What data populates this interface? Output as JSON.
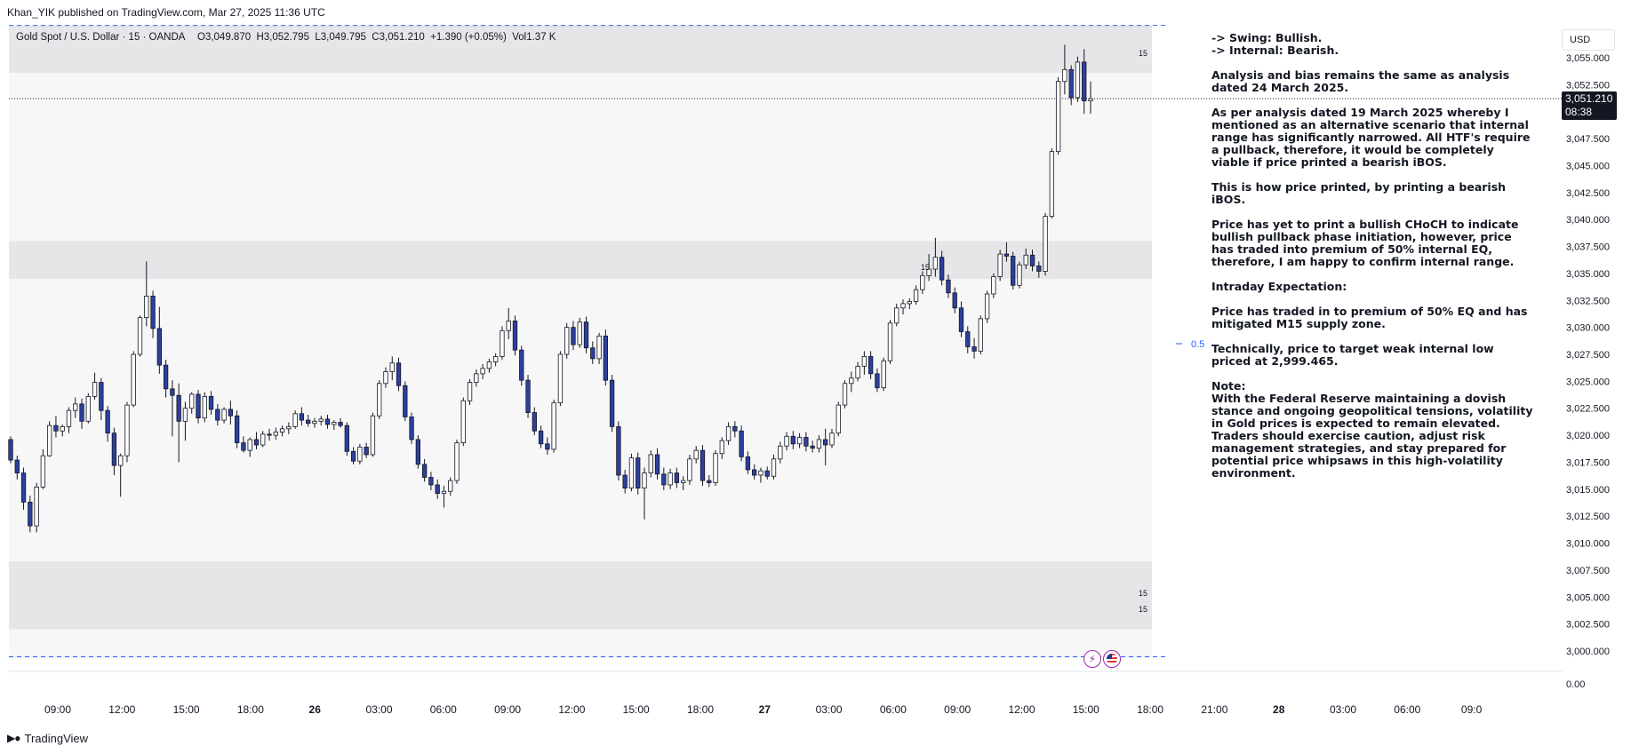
{
  "header": {
    "published_line": "Khan_YIK published on TradingView.com, Mar 27, 2025 11:36 UTC"
  },
  "legend": {
    "symbol": "Gold Spot / U.S. Dollar · 15 · OANDA",
    "ohlc": "O3,049.870  H3,052.795  L3,049.795  C3,051.210  +1.390 (+0.05%)  Vol1.37 K"
  },
  "price_scale": {
    "currency": "USD",
    "current_price": "3,051.210",
    "countdown": "08:38"
  },
  "zone_labels": {
    "top": "15",
    "middle": "15",
    "bottom_1": "15",
    "bottom_2": "15",
    "eq_marker": "0.5"
  },
  "annotation": [
    "-> Swing: Bullish.\n-> Internal: Bearish.",
    "Analysis and bias remains the same as analysis dated 24 March 2025.",
    "As per analysis dated 19 March 2025 whereby I mentioned as an alternative scenario that internal range has significantly narrowed. All HTF's require a pullback, therefore, it would be completely viable if price printed a bearish iBOS.",
    "This is how price printed, by printing a bearish iBOS.",
    "Price has yet to print a bullish CHoCH to indicate bullish pullback phase initiation, however, price has traded into premium of 50% internal EQ, therefore, I am happy to confirm internal range.",
    "Intraday Expectation:",
    "Price has traded in to premium of 50% EQ and has mitigated M15 supply zone.",
    "Technically, price to target weak internal low priced at 2,999.465.",
    "Note:\nWith the Federal Reserve maintaining a dovish stance and ongoing geopolitical tensions, volatility in Gold prices is expected to remain elevated. Traders should exercise caution, adjust risk management strategies, and stay prepared for potential price whipsaws in this high-volatility environment."
  ],
  "footer": {
    "brand": "TradingView"
  },
  "chart_data": {
    "type": "candlestick",
    "y_ticks": [
      "3,055.000",
      "3,052.500",
      "3,050.000",
      "3,047.500",
      "3,045.000",
      "3,042.500",
      "3,040.000",
      "3,037.500",
      "3,035.000",
      "3,032.500",
      "3,030.000",
      "3,027.500",
      "3,025.000",
      "3,022.500",
      "3,020.000",
      "3,017.500",
      "3,015.000",
      "3,012.500",
      "3,010.000",
      "3,007.500",
      "3,005.000",
      "3,002.500",
      "3,000.000"
    ],
    "volume_tick": "0.00",
    "x_ticks": [
      "09:00",
      "12:00",
      "15:00",
      "18:00",
      "26",
      "03:00",
      "06:00",
      "09:00",
      "12:00",
      "15:00",
      "18:00",
      "27",
      "03:00",
      "06:00",
      "09:00",
      "12:00",
      "15:00",
      "18:00",
      "21:00",
      "28",
      "03:00",
      "06:00",
      "09:0"
    ],
    "bold_x_ticks": [
      "26",
      "27",
      "28"
    ],
    "zones": [
      {
        "role": "supply",
        "from": 3053.6,
        "to": 3058.0
      },
      {
        "role": "supply",
        "from": 3034.5,
        "to": 3038.0
      },
      {
        "role": "demand",
        "from": 3002.0,
        "to": 3008.3
      }
    ],
    "levels": [
      {
        "price": 3058.0,
        "style": "dashed"
      },
      {
        "price": 3051.21,
        "style": "dotted"
      },
      {
        "price": 2999.465,
        "style": "dashed"
      }
    ],
    "eq_level": 3029.5,
    "candles": [
      [
        3019.6,
        3019.9,
        3017.4,
        3017.7
      ],
      [
        3017.7,
        3018.1,
        3015.9,
        3016.5
      ],
      [
        3016.5,
        3017.0,
        3013.1,
        3013.8
      ],
      [
        3013.8,
        3014.4,
        3011.0,
        3011.6
      ],
      [
        3011.6,
        3015.6,
        3011.0,
        3015.2
      ],
      [
        3015.2,
        3018.7,
        3015.0,
        3018.1
      ],
      [
        3018.1,
        3021.3,
        3018.0,
        3020.9
      ],
      [
        3020.9,
        3021.8,
        3019.8,
        3020.4
      ],
      [
        3020.4,
        3021.0,
        3019.9,
        3020.8
      ],
      [
        3020.8,
        3022.6,
        3020.2,
        3022.3
      ],
      [
        3022.3,
        3023.5,
        3021.6,
        3022.9
      ],
      [
        3022.9,
        3023.4,
        3020.6,
        3021.3
      ],
      [
        3021.3,
        3023.9,
        3021.1,
        3023.6
      ],
      [
        3023.6,
        3025.8,
        3023.3,
        3024.9
      ],
      [
        3024.9,
        3025.3,
        3021.4,
        3022.3
      ],
      [
        3022.3,
        3022.7,
        3019.4,
        3020.2
      ],
      [
        3020.2,
        3020.7,
        3016.3,
        3017.2
      ],
      [
        3017.2,
        3018.3,
        3014.3,
        3018.1
      ],
      [
        3018.1,
        3023.1,
        3017.5,
        3022.8
      ],
      [
        3022.8,
        3027.8,
        3022.6,
        3027.5
      ],
      [
        3027.5,
        3031.1,
        3027.3,
        3030.9
      ],
      [
        3030.9,
        3036.1,
        3030.1,
        3032.9
      ],
      [
        3032.9,
        3033.4,
        3029.0,
        3029.9
      ],
      [
        3029.9,
        3031.9,
        3025.7,
        3026.5
      ],
      [
        3026.5,
        3027.0,
        3023.5,
        3024.3
      ],
      [
        3024.3,
        3025.1,
        3019.9,
        3023.7
      ],
      [
        3023.7,
        3024.8,
        3017.5,
        3021.3
      ],
      [
        3021.3,
        3023.1,
        3019.5,
        3022.5
      ],
      [
        3022.5,
        3024.0,
        3022.0,
        3023.8
      ],
      [
        3023.8,
        3024.2,
        3021.1,
        3021.6
      ],
      [
        3021.6,
        3024.0,
        3021.2,
        3023.6
      ],
      [
        3023.6,
        3024.1,
        3021.9,
        3022.4
      ],
      [
        3022.4,
        3022.9,
        3020.9,
        3021.4
      ],
      [
        3021.4,
        3022.6,
        3021.1,
        3022.4
      ],
      [
        3022.4,
        3023.2,
        3021.0,
        3021.8
      ],
      [
        3021.8,
        3022.3,
        3018.8,
        3019.3
      ],
      [
        3019.3,
        3019.9,
        3018.4,
        3018.6
      ],
      [
        3018.6,
        3019.8,
        3018.0,
        3019.6
      ],
      [
        3019.6,
        3020.3,
        3018.7,
        3019.1
      ],
      [
        3019.1,
        3020.4,
        3018.9,
        3020.1
      ],
      [
        3020.1,
        3020.6,
        3019.5,
        3020.0
      ],
      [
        3020.0,
        3020.7,
        3019.6,
        3020.3
      ],
      [
        3020.3,
        3020.9,
        3019.9,
        3020.6
      ],
      [
        3020.6,
        3021.2,
        3020.1,
        3020.8
      ],
      [
        3020.8,
        3022.3,
        3020.6,
        3022.0
      ],
      [
        3022.0,
        3022.6,
        3020.9,
        3021.4
      ],
      [
        3021.4,
        3021.9,
        3020.8,
        3021.1
      ],
      [
        3021.1,
        3021.6,
        3020.7,
        3021.3
      ],
      [
        3021.3,
        3021.8,
        3020.9,
        3021.5
      ],
      [
        3021.5,
        3021.9,
        3020.6,
        3021.0
      ],
      [
        3021.0,
        3021.4,
        3020.5,
        3021.2
      ],
      [
        3021.2,
        3021.6,
        3020.7,
        3020.9
      ],
      [
        3020.9,
        3021.2,
        3018.1,
        3018.5
      ],
      [
        3018.5,
        3018.9,
        3017.3,
        3017.6
      ],
      [
        3017.6,
        3019.2,
        3017.3,
        3018.9
      ],
      [
        3018.9,
        3019.3,
        3017.9,
        3018.2
      ],
      [
        3018.2,
        3022.1,
        3018.0,
        3021.8
      ],
      [
        3021.8,
        3025.1,
        3021.5,
        3024.8
      ],
      [
        3024.8,
        3026.3,
        3024.4,
        3025.9
      ],
      [
        3025.9,
        3027.3,
        3025.1,
        3026.7
      ],
      [
        3026.7,
        3027.2,
        3024.1,
        3024.6
      ],
      [
        3024.6,
        3025.0,
        3021.3,
        3021.7
      ],
      [
        3021.7,
        3022.1,
        3019.2,
        3019.6
      ],
      [
        3019.6,
        3020.0,
        3016.9,
        3017.3
      ],
      [
        3017.3,
        3017.8,
        3015.7,
        3016.1
      ],
      [
        3016.1,
        3016.6,
        3014.9,
        3015.4
      ],
      [
        3015.4,
        3015.9,
        3014.1,
        3014.6
      ],
      [
        3014.6,
        3015.3,
        3013.3,
        3014.8
      ],
      [
        3014.8,
        3016.1,
        3014.4,
        3015.8
      ],
      [
        3015.8,
        3019.6,
        3015.5,
        3019.3
      ],
      [
        3019.3,
        3023.5,
        3019.0,
        3023.2
      ],
      [
        3023.2,
        3025.2,
        3022.8,
        3024.9
      ],
      [
        3024.9,
        3026.1,
        3024.5,
        3025.7
      ],
      [
        3025.7,
        3026.6,
        3025.2,
        3026.2
      ],
      [
        3026.2,
        3027.1,
        3025.8,
        3026.8
      ],
      [
        3026.8,
        3027.6,
        3026.4,
        3027.3
      ],
      [
        3027.3,
        3030.1,
        3027.0,
        3029.7
      ],
      [
        3029.7,
        3031.8,
        3028.9,
        3030.6
      ],
      [
        3030.6,
        3031.1,
        3027.4,
        3027.9
      ],
      [
        3027.9,
        3028.3,
        3024.6,
        3025.1
      ],
      [
        3025.1,
        3025.6,
        3021.6,
        3022.1
      ],
      [
        3022.1,
        3022.6,
        3020.0,
        3020.4
      ],
      [
        3020.4,
        3020.9,
        3018.8,
        3019.2
      ],
      [
        3019.2,
        3019.8,
        3018.2,
        3018.7
      ],
      [
        3018.7,
        3023.3,
        3018.4,
        3023.0
      ],
      [
        3023.0,
        3027.8,
        3022.7,
        3027.5
      ],
      [
        3027.5,
        3030.4,
        3027.1,
        3030.0
      ],
      [
        3030.0,
        3030.6,
        3027.9,
        3028.4
      ],
      [
        3028.4,
        3030.9,
        3028.1,
        3030.5
      ],
      [
        3030.5,
        3031.0,
        3027.6,
        3028.1
      ],
      [
        3028.1,
        3028.7,
        3026.6,
        3027.1
      ],
      [
        3027.1,
        3029.5,
        3026.6,
        3029.2
      ],
      [
        3029.2,
        3029.8,
        3024.6,
        3025.1
      ],
      [
        3025.1,
        3025.6,
        3020.3,
        3020.8
      ],
      [
        3020.8,
        3021.3,
        3015.8,
        3016.3
      ],
      [
        3016.3,
        3016.8,
        3014.6,
        3015.1
      ],
      [
        3015.1,
        3018.3,
        3014.8,
        3017.9
      ],
      [
        3017.9,
        3018.4,
        3014.5,
        3015.1
      ],
      [
        3015.1,
        3017.0,
        3012.2,
        3016.5
      ],
      [
        3016.5,
        3018.6,
        3016.1,
        3018.2
      ],
      [
        3018.2,
        3018.8,
        3015.9,
        3016.4
      ],
      [
        3016.4,
        3017.0,
        3014.9,
        3015.4
      ],
      [
        3015.4,
        3016.9,
        3015.0,
        3016.5
      ],
      [
        3016.5,
        3017.0,
        3015.1,
        3015.6
      ],
      [
        3015.6,
        3016.2,
        3014.9,
        3015.8
      ],
      [
        3015.8,
        3018.2,
        3015.4,
        3017.8
      ],
      [
        3017.8,
        3019.0,
        3017.4,
        3018.6
      ],
      [
        3018.6,
        3019.1,
        3015.3,
        3015.8
      ],
      [
        3015.8,
        3016.3,
        3015.2,
        3015.6
      ],
      [
        3015.6,
        3018.6,
        3015.3,
        3018.3
      ],
      [
        3018.3,
        3019.8,
        3017.8,
        3019.5
      ],
      [
        3019.5,
        3021.2,
        3019.1,
        3020.8
      ],
      [
        3020.8,
        3021.3,
        3019.8,
        3020.4
      ],
      [
        3020.4,
        3020.9,
        3017.6,
        3018.0
      ],
      [
        3018.0,
        3018.5,
        3016.4,
        3016.8
      ],
      [
        3016.8,
        3017.3,
        3015.9,
        3016.3
      ],
      [
        3016.3,
        3017.0,
        3015.6,
        3016.7
      ],
      [
        3016.7,
        3017.1,
        3015.9,
        3016.2
      ],
      [
        3016.2,
        3018.2,
        3015.9,
        3017.8
      ],
      [
        3017.8,
        3019.4,
        3017.4,
        3019.0
      ],
      [
        3019.0,
        3020.3,
        3018.6,
        3019.9
      ],
      [
        3019.9,
        3020.4,
        3018.7,
        3019.2
      ],
      [
        3019.2,
        3020.2,
        3018.8,
        3019.8
      ],
      [
        3019.8,
        3020.3,
        3018.5,
        3019.0
      ],
      [
        3019.0,
        3019.5,
        3018.4,
        3018.8
      ],
      [
        3018.8,
        3020.0,
        3018.4,
        3019.6
      ],
      [
        3019.6,
        3020.6,
        3017.2,
        3019.1
      ],
      [
        3019.1,
        3020.6,
        3018.8,
        3020.2
      ],
      [
        3020.2,
        3023.1,
        3019.9,
        3022.8
      ],
      [
        3022.8,
        3025.1,
        3022.5,
        3024.8
      ],
      [
        3024.8,
        3025.9,
        3024.0,
        3025.3
      ],
      [
        3025.3,
        3026.8,
        3025.0,
        3026.4
      ],
      [
        3026.4,
        3027.8,
        3025.6,
        3027.3
      ],
      [
        3027.3,
        3027.8,
        3025.2,
        3025.7
      ],
      [
        3025.7,
        3026.2,
        3024.0,
        3024.4
      ],
      [
        3024.4,
        3027.2,
        3024.1,
        3026.9
      ],
      [
        3026.9,
        3030.7,
        3026.6,
        3030.4
      ],
      [
        3030.4,
        3032.2,
        3030.1,
        3031.8
      ],
      [
        3031.8,
        3032.6,
        3031.2,
        3032.2
      ],
      [
        3032.2,
        3032.7,
        3031.7,
        3032.4
      ],
      [
        3032.4,
        3033.9,
        3032.1,
        3033.5
      ],
      [
        3033.5,
        3035.2,
        3033.1,
        3034.8
      ],
      [
        3034.8,
        3036.8,
        3034.3,
        3035.4
      ],
      [
        3035.4,
        3038.3,
        3034.7,
        3036.5
      ],
      [
        3036.5,
        3037.1,
        3033.9,
        3034.4
      ],
      [
        3034.4,
        3034.9,
        3032.7,
        3033.2
      ],
      [
        3033.2,
        3033.7,
        3031.3,
        3031.8
      ],
      [
        3031.8,
        3032.4,
        3029.1,
        3029.6
      ],
      [
        3029.6,
        3030.1,
        3027.6,
        3028.2
      ],
      [
        3028.2,
        3029.0,
        3027.1,
        3027.8
      ],
      [
        3027.8,
        3031.1,
        3027.5,
        3030.8
      ],
      [
        3030.8,
        3033.4,
        3030.4,
        3033.1
      ],
      [
        3033.1,
        3035.0,
        3032.7,
        3034.7
      ],
      [
        3034.7,
        3037.2,
        3034.3,
        3036.8
      ],
      [
        3036.8,
        3037.9,
        3036.1,
        3036.6
      ],
      [
        3036.6,
        3037.0,
        3033.5,
        3033.9
      ],
      [
        3033.9,
        3036.1,
        3033.6,
        3035.8
      ],
      [
        3035.8,
        3037.3,
        3035.4,
        3036.7
      ],
      [
        3036.7,
        3037.2,
        3035.2,
        3035.7
      ],
      [
        3035.7,
        3036.1,
        3034.6,
        3035.2
      ],
      [
        3035.2,
        3040.6,
        3034.8,
        3040.3
      ],
      [
        3040.3,
        3046.6,
        3040.1,
        3046.3
      ],
      [
        3046.3,
        3053.2,
        3046.0,
        3052.8
      ],
      [
        3052.8,
        3056.2,
        3051.6,
        3053.9
      ],
      [
        3053.9,
        3054.3,
        3050.6,
        3051.3
      ],
      [
        3051.3,
        3055.1,
        3050.9,
        3054.6
      ],
      [
        3054.6,
        3055.8,
        3049.8,
        3051.0
      ],
      [
        3051.0,
        3052.8,
        3049.8,
        3051.2
      ]
    ]
  }
}
